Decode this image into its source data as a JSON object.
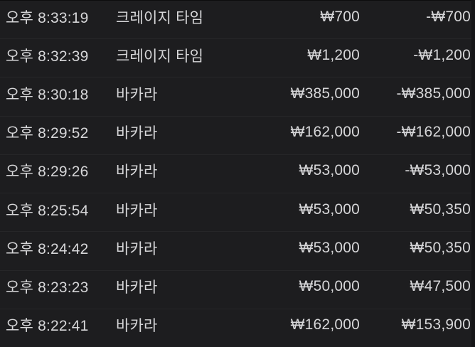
{
  "list": {
    "columns": [
      "time",
      "game",
      "bet",
      "result"
    ],
    "rows": [
      {
        "time": "오후 8:33:19",
        "game": "크레이지 타임",
        "bet": "₩700",
        "result": "-₩700"
      },
      {
        "time": "오후 8:32:39",
        "game": "크레이지 타임",
        "bet": "₩1,200",
        "result": "-₩1,200"
      },
      {
        "time": "오후 8:30:18",
        "game": "바카라",
        "bet": "₩385,000",
        "result": "-₩385,000"
      },
      {
        "time": "오후 8:29:52",
        "game": "바카라",
        "bet": "₩162,000",
        "result": "-₩162,000"
      },
      {
        "time": "오후 8:29:26",
        "game": "바카라",
        "bet": "₩53,000",
        "result": "-₩53,000"
      },
      {
        "time": "오후 8:25:54",
        "game": "바카라",
        "bet": "₩53,000",
        "result": "₩50,350"
      },
      {
        "time": "오후 8:24:42",
        "game": "바카라",
        "bet": "₩53,000",
        "result": "₩50,350"
      },
      {
        "time": "오후 8:23:23",
        "game": "바카라",
        "bet": "₩50,000",
        "result": "₩47,500"
      },
      {
        "time": "오후 8:22:41",
        "game": "바카라",
        "bet": "₩162,000",
        "result": "₩153,900"
      }
    ]
  },
  "colors": {
    "background": "#1d1d1f",
    "text": "#d6d6d8",
    "separator": "rgba(255,255,255,0.045)",
    "scrollbar_track": "#151517"
  }
}
